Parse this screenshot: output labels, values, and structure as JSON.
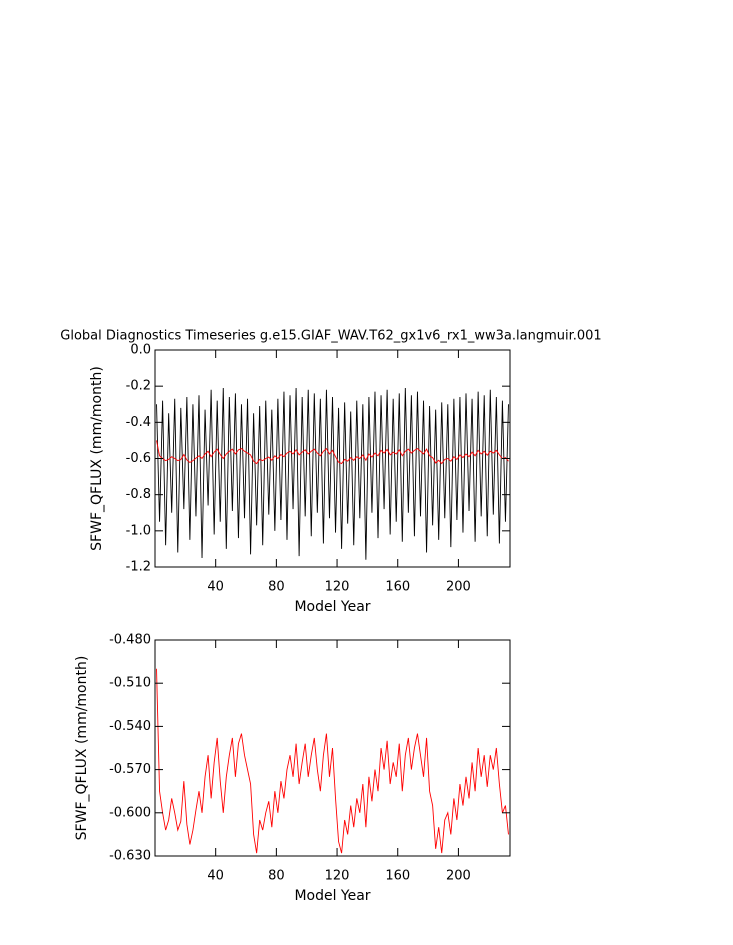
{
  "chart_data": [
    {
      "type": "line",
      "title": "Global Diagnostics Timeseries g.e15.GIAF_WAV.T62_gx1v6_rx1_ww3a.langmuir.001",
      "xlabel": "Model Year",
      "ylabel": "SFWF_QFLUX (mm/month)",
      "x": [
        1,
        3,
        5,
        7,
        9,
        11,
        13,
        15,
        17,
        19,
        21,
        23,
        25,
        27,
        29,
        31,
        33,
        35,
        37,
        39,
        41,
        43,
        45,
        47,
        49,
        51,
        53,
        55,
        57,
        59,
        61,
        63,
        65,
        67,
        69,
        71,
        73,
        75,
        77,
        79,
        81,
        83,
        85,
        87,
        89,
        91,
        93,
        95,
        97,
        99,
        101,
        103,
        105,
        107,
        109,
        111,
        113,
        115,
        117,
        119,
        121,
        123,
        125,
        127,
        129,
        131,
        133,
        135,
        137,
        139,
        141,
        143,
        145,
        147,
        149,
        151,
        153,
        155,
        157,
        159,
        161,
        163,
        165,
        167,
        169,
        171,
        173,
        175,
        177,
        179,
        181,
        183,
        185,
        187,
        189,
        191,
        193,
        195,
        197,
        199,
        201,
        203,
        205,
        207,
        209,
        211,
        213,
        215,
        217,
        219,
        221,
        223,
        225,
        227,
        229,
        231,
        233
      ],
      "series": [
        {
          "color": "#000000",
          "values": [
            -0.3,
            -0.95,
            -0.28,
            -1.08,
            -0.35,
            -0.9,
            -0.27,
            -1.12,
            -0.32,
            -0.88,
            -0.26,
            -1.05,
            -0.3,
            -0.92,
            -0.25,
            -1.15,
            -0.33,
            -0.86,
            -0.22,
            -1.02,
            -0.28,
            -0.95,
            -0.21,
            -1.1,
            -0.26,
            -0.89,
            -0.24,
            -1.04,
            -0.3,
            -0.93,
            -0.27,
            -1.13,
            -0.35,
            -0.97,
            -0.31,
            -1.08,
            -0.28,
            -0.91,
            -0.33,
            -1.0,
            -0.27,
            -0.94,
            -0.23,
            -1.05,
            -0.25,
            -0.88,
            -0.21,
            -1.14,
            -0.26,
            -0.92,
            -0.22,
            -1.03,
            -0.24,
            -0.9,
            -0.27,
            -1.07,
            -0.22,
            -0.93,
            -0.26,
            -1.01,
            -0.32,
            -1.1,
            -0.29,
            -0.96,
            -0.34,
            -1.08,
            -0.28,
            -0.93,
            -0.3,
            -1.16,
            -0.26,
            -0.9,
            -0.23,
            -1.04,
            -0.25,
            -0.88,
            -0.22,
            -1.02,
            -0.27,
            -0.95,
            -0.24,
            -1.06,
            -0.21,
            -0.9,
            -0.25,
            -1.03,
            -0.23,
            -0.92,
            -0.28,
            -1.12,
            -0.31,
            -0.97,
            -0.33,
            -1.05,
            -0.29,
            -0.93,
            -0.3,
            -1.09,
            -0.27,
            -0.94,
            -0.26,
            -1.01,
            -0.24,
            -0.89,
            -0.27,
            -1.06,
            -0.23,
            -0.92,
            -0.25,
            -1.03,
            -0.22,
            -0.91,
            -0.26,
            -1.07,
            -0.28,
            -0.95,
            -0.3
          ]
        },
        {
          "color": "#ff0000",
          "values": [
            -0.5,
            -0.585,
            -0.6,
            -0.612,
            -0.605,
            -0.59,
            -0.6,
            -0.612,
            -0.606,
            -0.578,
            -0.608,
            -0.622,
            -0.612,
            -0.598,
            -0.585,
            -0.6,
            -0.575,
            -0.56,
            -0.59,
            -0.565,
            -0.548,
            -0.578,
            -0.6,
            -0.575,
            -0.56,
            -0.548,
            -0.575,
            -0.552,
            -0.545,
            -0.56,
            -0.57,
            -0.58,
            -0.615,
            -0.628,
            -0.605,
            -0.612,
            -0.6,
            -0.592,
            -0.61,
            -0.585,
            -0.6,
            -0.578,
            -0.59,
            -0.57,
            -0.56,
            -0.575,
            -0.552,
            -0.58,
            -0.565,
            -0.552,
            -0.575,
            -0.56,
            -0.548,
            -0.57,
            -0.585,
            -0.56,
            -0.545,
            -0.575,
            -0.555,
            -0.59,
            -0.62,
            -0.628,
            -0.605,
            -0.615,
            -0.595,
            -0.61,
            -0.59,
            -0.6,
            -0.58,
            -0.61,
            -0.575,
            -0.592,
            -0.57,
            -0.585,
            -0.555,
            -0.57,
            -0.55,
            -0.58,
            -0.565,
            -0.575,
            -0.552,
            -0.585,
            -0.56,
            -0.548,
            -0.57,
            -0.555,
            -0.545,
            -0.56,
            -0.575,
            -0.548,
            -0.585,
            -0.595,
            -0.625,
            -0.61,
            -0.628,
            -0.605,
            -0.6,
            -0.615,
            -0.59,
            -0.605,
            -0.58,
            -0.595,
            -0.575,
            -0.59,
            -0.565,
            -0.585,
            -0.555,
            -0.575,
            -0.56,
            -0.582,
            -0.56,
            -0.57,
            -0.555,
            -0.58,
            -0.6,
            -0.595,
            -0.615
          ]
        }
      ],
      "xlim": [
        0,
        234
      ],
      "xticks": [
        40,
        80,
        120,
        160,
        200
      ],
      "ylim": [
        -1.2,
        0
      ],
      "yticks": [
        -1.2,
        {
          "value": -1.0,
          "label": "-1.0"
        },
        -0.8,
        -0.6,
        -0.4,
        -0.2,
        {
          "value": 0,
          "label": "0.0"
        }
      ]
    },
    {
      "type": "line",
      "xlabel": "Model Year",
      "ylabel": "SFWF_QFLUX (mm/month)",
      "series": [
        {
          "color": "#ff0000"
        }
      ],
      "xlim": [
        0,
        234
      ],
      "xticks": [
        40,
        80,
        120,
        160,
        200
      ],
      "ylim": [
        -0.63,
        -0.48
      ],
      "yticks": [
        {
          "value": -0.63,
          "label": "-0.630"
        },
        {
          "value": -0.6,
          "label": "-0.600"
        },
        {
          "value": -0.57,
          "label": "-0.570"
        },
        {
          "value": -0.54,
          "label": "-0.540"
        },
        {
          "value": -0.51,
          "label": "-0.510"
        },
        {
          "value": -0.48,
          "label": "-0.480"
        }
      ]
    }
  ]
}
